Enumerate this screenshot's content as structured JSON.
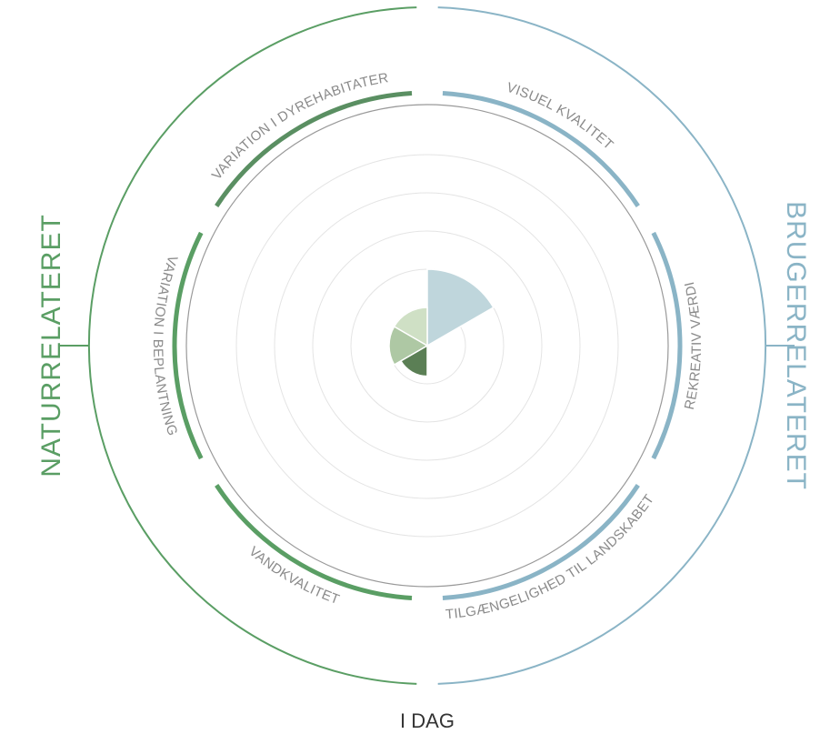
{
  "chart_data": {
    "type": "radial-bar",
    "caption": "I DAG",
    "rmax": 5,
    "grid_rings": [
      1,
      2,
      3,
      4,
      5
    ],
    "groups": [
      {
        "name": "NATURRELATERET",
        "color": "#5a9e64"
      },
      {
        "name": "BRUGERRELATERET",
        "color": "#8ab4c6"
      }
    ],
    "segments": [
      {
        "label": "VISUEL KVALITET",
        "group": "BRUGERRELATERET",
        "value": 2.0,
        "color": "#bfd6dc"
      },
      {
        "label": "REKREATIV VÆRDI",
        "group": "BRUGERRELATERET",
        "value": 0,
        "color": "#bfd6dc"
      },
      {
        "label": "TILGÆNGELIGHED TIL LANDSKABET",
        "group": "BRUGERRELATERET",
        "value": 0,
        "color": "#bfd6dc"
      },
      {
        "label": "VANDKVALITET",
        "group": "NATURRELATERET",
        "value": 0.8,
        "color": "#5b7f55"
      },
      {
        "label": "VARIATION I BEPLANTNING",
        "group": "NATURRELATERET",
        "value": 1.0,
        "color": "#aec8a4"
      },
      {
        "label": "VARIATION I DYREHABITATER",
        "group": "NATURRELATERET",
        "value": 1.0,
        "color": "#cfe0c5"
      }
    ]
  },
  "colors": {
    "nature_dark": "#5a8f62",
    "nature": "#5a9e64",
    "user": "#8ab4c6",
    "grid": "#e4e4e4",
    "inner_ring": "#999999"
  }
}
